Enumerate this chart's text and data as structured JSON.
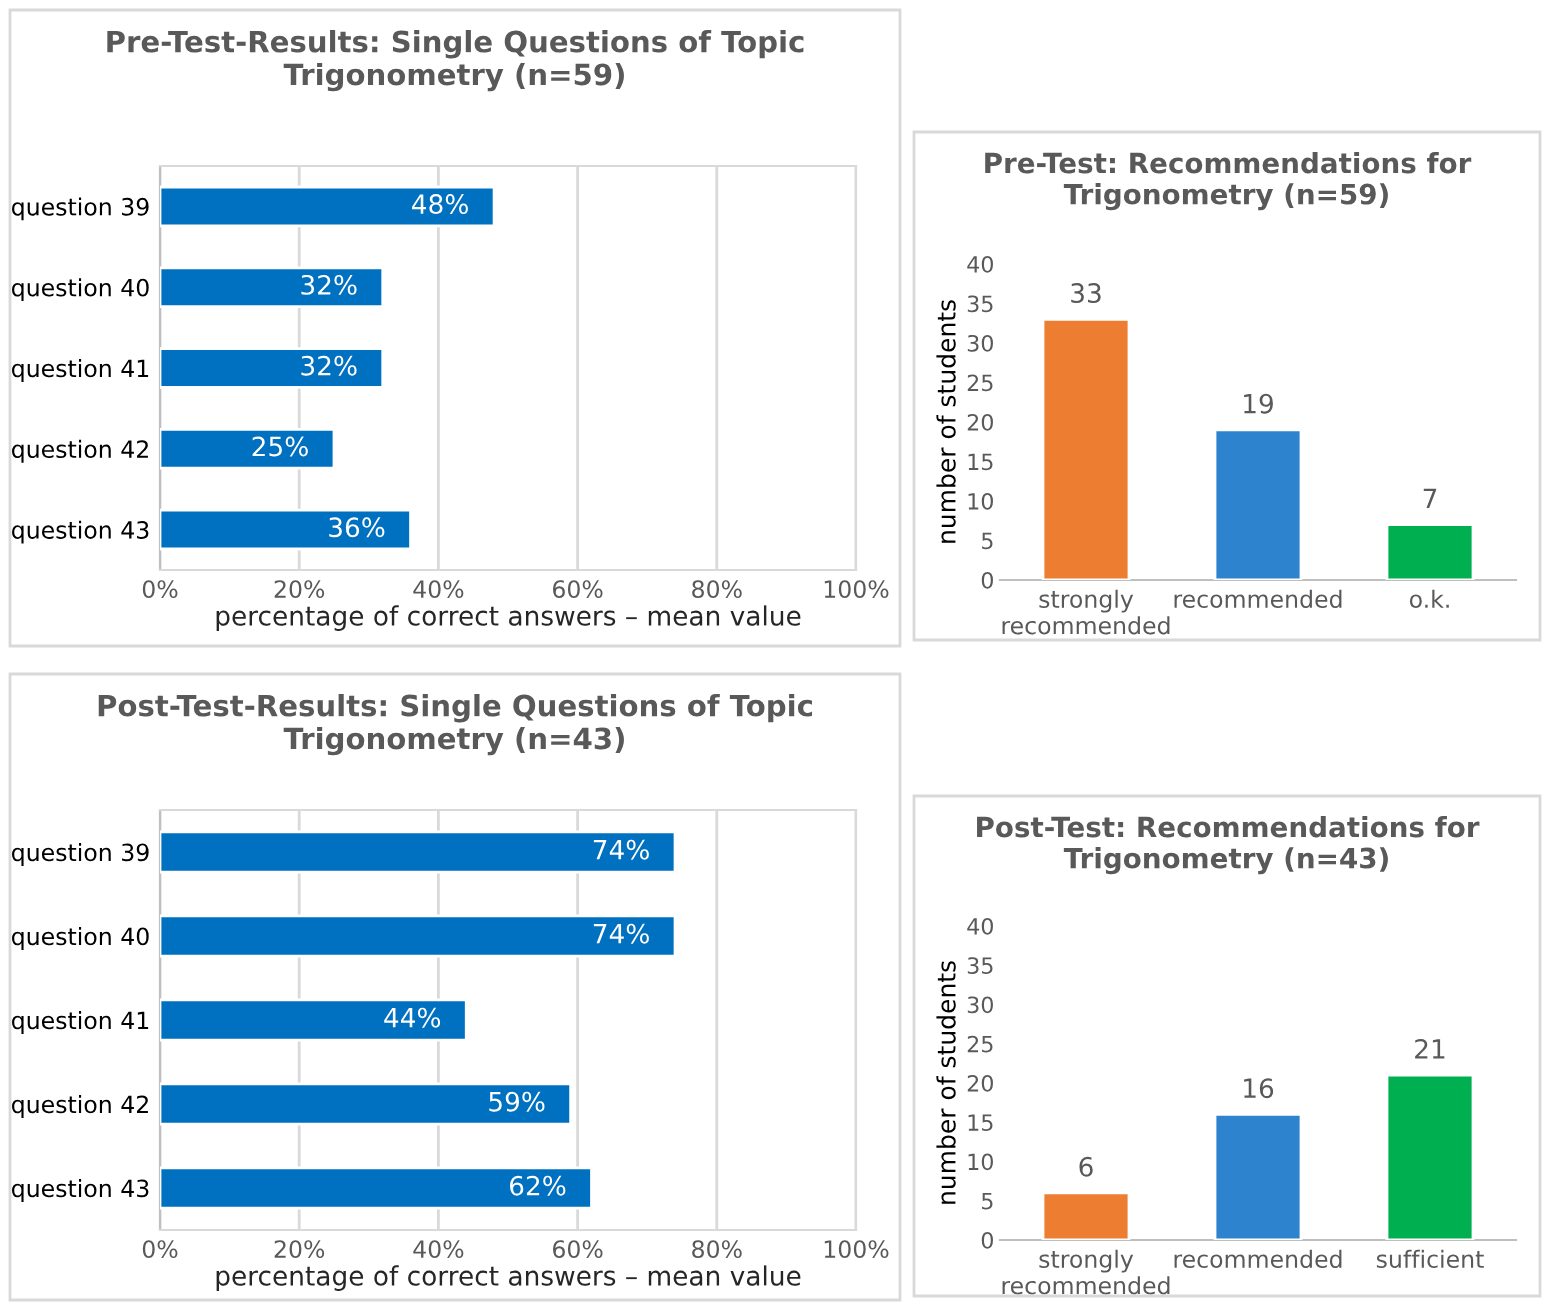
{
  "chart_data": [
    {
      "type": "bar",
      "orientation": "horizontal",
      "title": "Pre-Test-Results: Single Questions of Topic Trigonometry (n=59)",
      "xlabel": "percentage of correct answers – mean value",
      "categories": [
        "question 39",
        "question 40",
        "question 41",
        "question 42",
        "question 43"
      ],
      "values": [
        48,
        32,
        32,
        25,
        36
      ],
      "value_labels": [
        "48%",
        "32%",
        "32%",
        "25%",
        "36%"
      ],
      "color": "#0070c0",
      "xlim": [
        0,
        100
      ],
      "xticks": [
        {
          "value": 0,
          "label": "0%"
        },
        {
          "value": 20,
          "label": "20%"
        },
        {
          "value": 40,
          "label": "40%"
        },
        {
          "value": 60,
          "label": "60%"
        },
        {
          "value": 80,
          "label": "80%"
        },
        {
          "value": 100,
          "label": "100%"
        }
      ],
      "grid": "x"
    },
    {
      "type": "bar",
      "title": "Pre-Test: Recommendations for Trigonometry (n=59)",
      "ylabel": "number of students",
      "categories": [
        "strongly\nrecommended",
        "recommended",
        "o.k."
      ],
      "values": [
        33,
        19,
        7
      ],
      "colors": [
        "#ed7d31",
        "#2e83cf",
        "#00b050"
      ],
      "data_labels": true,
      "ylim": [
        0,
        40
      ],
      "yticks": [
        0,
        5,
        10,
        15,
        20,
        25,
        30,
        35,
        40
      ],
      "grid": false
    },
    {
      "type": "bar",
      "orientation": "horizontal",
      "title": "Post-Test-Results: Single Questions of Topic Trigonometry (n=43)",
      "xlabel": "percentage of correct answers – mean value",
      "categories": [
        "question 39",
        "question 40",
        "question 41",
        "question 42",
        "question 43"
      ],
      "values": [
        74,
        74,
        44,
        59,
        62
      ],
      "value_labels": [
        "74%",
        "74%",
        "44%",
        "59%",
        "62%"
      ],
      "color": "#0070c0",
      "xlim": [
        0,
        100
      ],
      "xticks": [
        {
          "value": 0,
          "label": "0%"
        },
        {
          "value": 20,
          "label": "20%"
        },
        {
          "value": 40,
          "label": "40%"
        },
        {
          "value": 60,
          "label": "60%"
        },
        {
          "value": 80,
          "label": "80%"
        },
        {
          "value": 100,
          "label": "100%"
        }
      ],
      "grid": "x"
    },
    {
      "type": "bar",
      "title": "Post-Test: Recommendations for Trigonometry (n=43)",
      "ylabel": "number of students",
      "categories": [
        "strongly\nrecommended",
        "recommended",
        "sufficient"
      ],
      "values": [
        6,
        16,
        21
      ],
      "colors": [
        "#ed7d31",
        "#2e83cf",
        "#00b050"
      ],
      "data_labels": true,
      "ylim": [
        0,
        40
      ],
      "yticks": [
        0,
        5,
        10,
        15,
        20,
        25,
        30,
        35,
        40
      ],
      "grid": false
    }
  ]
}
